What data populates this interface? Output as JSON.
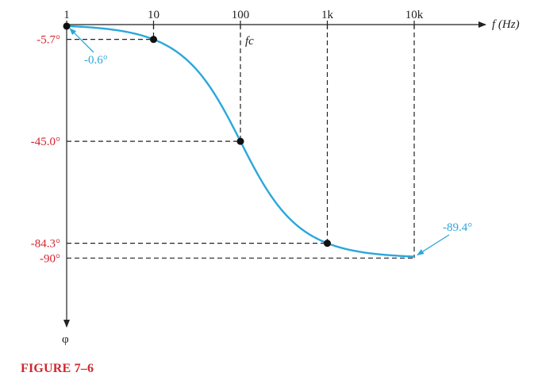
{
  "chart_data": {
    "type": "line",
    "xscale": "log",
    "xlim": [
      1,
      10000
    ],
    "ylim": [
      0,
      -90
    ],
    "x_ticks": [
      {
        "value": 1,
        "label": "1"
      },
      {
        "value": 10,
        "label": "10"
      },
      {
        "value": 100,
        "label": "100"
      },
      {
        "value": 1000,
        "label": "1k"
      },
      {
        "value": 10000,
        "label": "10k"
      }
    ],
    "x_axis_label": "f (Hz)",
    "y_axis_label": "φ",
    "fc_label": "fc",
    "cutoff_frequency": 100,
    "marked_points": [
      {
        "x": 1,
        "y": -0.6
      },
      {
        "x": 10,
        "y": -5.7
      },
      {
        "x": 100,
        "y": -45.0
      },
      {
        "x": 1000,
        "y": -84.3
      },
      {
        "x": 10000,
        "y": -89.4
      }
    ],
    "y_labels": [
      {
        "value": -5.7,
        "label": "-5.7°"
      },
      {
        "value": -45.0,
        "label": "-45.0°"
      },
      {
        "value": -84.3,
        "label": "-84.3°"
      },
      {
        "value": -90,
        "label": "-90°"
      }
    ],
    "annotations": [
      {
        "x": 1,
        "y": -0.6,
        "text": "-0.6°"
      },
      {
        "x": 10000,
        "y": -89.4,
        "text": "-89.4°"
      }
    ],
    "colors": {
      "curve": "#2aa7dc",
      "point": "#111111",
      "y_labels": "#d0262f",
      "annotations": "#2aa7dc",
      "caption": "#d0262f"
    }
  },
  "caption": "FIGURE 7–6"
}
